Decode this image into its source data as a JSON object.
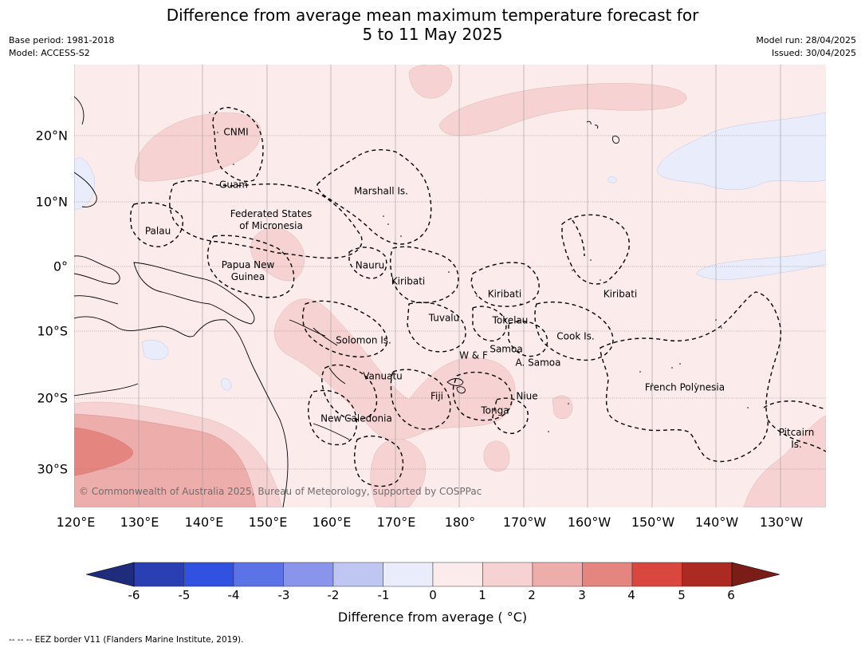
{
  "title_line1": "Difference from average mean maximum temperature forecast for",
  "title_line2": "5 to 11 May 2025",
  "meta_left": [
    "Base period: 1981-2018",
    "Model: ACCESS-S2"
  ],
  "meta_right": [
    "Model run: 28/04/2025",
    "Issued: 30/04/2025"
  ],
  "longitude_labels": [
    "120°E",
    "130°E",
    "140°E",
    "150°E",
    "160°E",
    "170°E",
    "180°",
    "170°W",
    "160°W",
    "150°W",
    "140°W",
    "130°W"
  ],
  "latitude_labels": [
    "20°N",
    "10°N",
    "0°",
    "10°S",
    "20°S",
    "30°S"
  ],
  "regions": [
    {
      "name": "CNMI"
    },
    {
      "name": "Guam"
    },
    {
      "name": "Marshall Is."
    },
    {
      "name": "Palau"
    },
    {
      "name": "Federated States\nof Micronesia"
    },
    {
      "name": "Papua New\nGuinea"
    },
    {
      "name": "Nauru"
    },
    {
      "name": "Kiribati"
    },
    {
      "name": "Kiribati"
    },
    {
      "name": "Kiribati"
    },
    {
      "name": "Tuvalu"
    },
    {
      "name": "Tokelau"
    },
    {
      "name": "Solomon Is."
    },
    {
      "name": "Cook Is."
    },
    {
      "name": "W & F"
    },
    {
      "name": "Samoa"
    },
    {
      "name": "A. Samoa"
    },
    {
      "name": "Vanuatu"
    },
    {
      "name": "Fiji"
    },
    {
      "name": "Niue"
    },
    {
      "name": "French Polynesia"
    },
    {
      "name": "Tonga"
    },
    {
      "name": "New Caledonia"
    },
    {
      "name": "Pitcairn\nIs."
    }
  ],
  "copyright": "© Commonwealth of Australia 2025, Bureau of Meteorology, supported by COSPPac",
  "colorbar": {
    "ticks": [
      "-6",
      "-5",
      "-4",
      "-3",
      "-2",
      "-1",
      "0",
      "1",
      "2",
      "3",
      "4",
      "5",
      "6"
    ],
    "colors": [
      "#2a3fb4",
      "#3151e0",
      "#5b73e6",
      "#8895ea",
      "#bfc6f2",
      "#e9ecfb",
      "#fbeceb",
      "#f6d3d2",
      "#edaeab",
      "#e4857f",
      "#d9473e",
      "#ad2a22"
    ],
    "under_color": "#1f2c7c",
    "over_color": "#7a1c17",
    "label": "Difference from average ( °C)"
  },
  "footer": "--  --  -- EEZ border V11 (Flanders Marine Institute, 2019)."
}
